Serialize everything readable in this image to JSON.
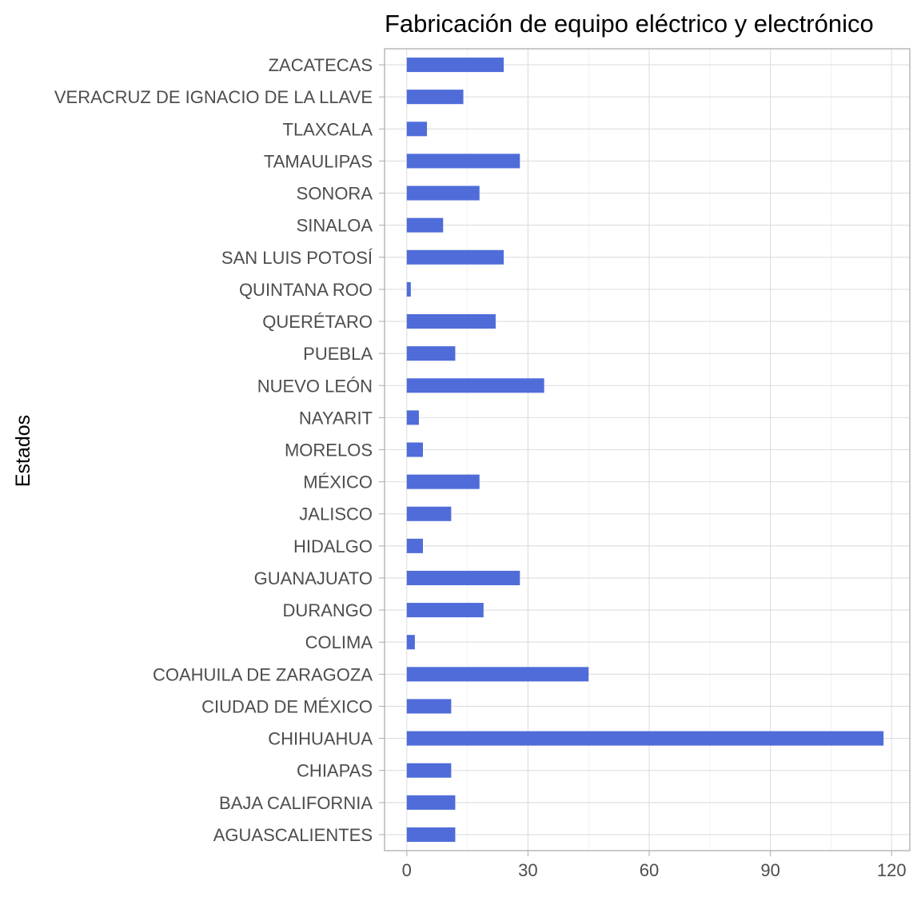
{
  "chart_data": {
    "type": "bar",
    "orientation": "horizontal",
    "title": "Fabricación de equipo eléctrico y electrónico",
    "xlabel": "",
    "ylabel": "Estados",
    "categories": [
      "AGUASCALIENTES",
      "BAJA CALIFORNIA",
      "CHIAPAS",
      "CHIHUAHUA",
      "CIUDAD DE MÉXICO",
      "COAHUILA DE ZARAGOZA",
      "COLIMA",
      "DURANGO",
      "GUANAJUATO",
      "HIDALGO",
      "JALISCO",
      "MÉXICO",
      "MORELOS",
      "NAYARIT",
      "NUEVO LEÓN",
      "PUEBLA",
      "QUERÉTARO",
      "QUINTANA ROO",
      "SAN LUIS POTOSÍ",
      "SINALOA",
      "SONORA",
      "TAMAULIPAS",
      "TLAXCALA",
      "VERACRUZ DE IGNACIO DE LA LLAVE",
      "ZACATECAS"
    ],
    "values": [
      12,
      12,
      11,
      118,
      11,
      45,
      2,
      19,
      28,
      4,
      11,
      18,
      4,
      3,
      34,
      12,
      22,
      1,
      24,
      9,
      18,
      28,
      5,
      14,
      24
    ],
    "xlim": [
      -5.5,
      124.5
    ],
    "xticks": [
      0,
      30,
      60,
      90,
      120
    ],
    "xtick_labels": [
      "0",
      "30",
      "60",
      "90",
      "120"
    ],
    "grid": true,
    "bar_color": "#4F6CD9"
  }
}
